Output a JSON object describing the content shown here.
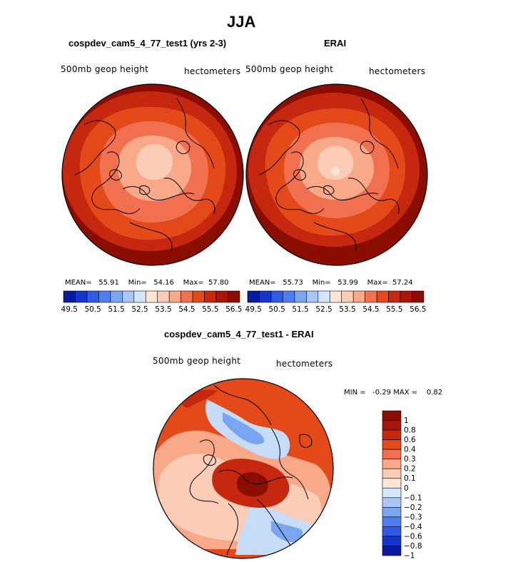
{
  "page": {
    "season": "JJA"
  },
  "colors": {
    "dark_red": "#8b0d00",
    "red": "#c5280e",
    "orange_red": "#e44a19",
    "orange": "#f07050",
    "salmon": "#f7a98a",
    "light_salmon": "#fbcdb6",
    "pale": "#fde6d8",
    "light_blue": "#c7dcf7",
    "blue": "#7aa6ef",
    "dark_blue": "#0a1a9e"
  },
  "chart_data": [
    {
      "type": "heatmap",
      "title": "cospdev_cam5_4_77_test1 (yrs 2-3)",
      "left_label": "500mb  geop  height",
      "right_label": "hectometers",
      "stats": {
        "mean_label": "MEAN=",
        "mean": "55.91",
        "min_label": "Min=",
        "min": "54.16",
        "max_label": "Max=",
        "max": "57.80"
      },
      "colorbar_levels": [
        49.5,
        50,
        50.5,
        51,
        51.5,
        52,
        52.5,
        53,
        53.5,
        54,
        54.5,
        55,
        55.5,
        56,
        56.5
      ],
      "colorbar_ticklabels": [
        "49.5",
        "50.5",
        "51.5",
        "52.5",
        "53.5",
        "54.5",
        "55.5",
        "56.5"
      ]
    },
    {
      "type": "heatmap",
      "title": "ERAI",
      "left_label": "500mb  geop  height",
      "right_label": "hectometers",
      "stats": {
        "mean_label": "MEAN=",
        "mean": "55.73",
        "min_label": "Min=",
        "min": "53.99",
        "max_label": "Max=",
        "max": "57.24"
      },
      "colorbar_levels": [
        49.5,
        50,
        50.5,
        51,
        51.5,
        52,
        52.5,
        53,
        53.5,
        54,
        54.5,
        55,
        55.5,
        56,
        56.5
      ],
      "colorbar_ticklabels": [
        "49.5",
        "50.5",
        "51.5",
        "52.5",
        "53.5",
        "54.5",
        "55.5",
        "56.5"
      ]
    },
    {
      "type": "heatmap",
      "title": "cospdev_cam5_4_77_test1 - ERAI",
      "left_label": "500mb  geop  height",
      "right_label": "hectometers",
      "stats": {
        "min_label": "MIN =",
        "min": "-0.29",
        "max_label": "MAX =",
        "max": "0.82"
      },
      "colorbar_levels": [
        1,
        0.8,
        0.6,
        0.4,
        0.3,
        0.2,
        0.1,
        0,
        -0.1,
        -0.2,
        -0.3,
        -0.4,
        -0.6,
        -0.8,
        -1
      ],
      "colorbar_ticklabels": [
        "1",
        "0.8",
        "0.6",
        "0.4",
        "0.3",
        "0.2",
        "0.1",
        "0",
        "−0.1",
        "−0.2",
        "−0.3",
        "−0.4",
        "−0.6",
        "−0.8",
        "−1"
      ]
    }
  ]
}
